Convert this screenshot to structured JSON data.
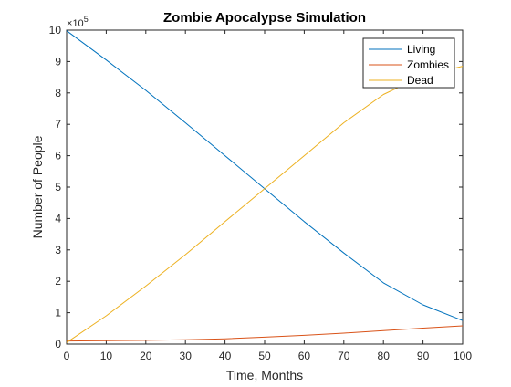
{
  "chart_data": {
    "type": "line",
    "title": "Zombie Apocalypse Simulation",
    "xlabel": "Time, Months",
    "ylabel": "Number of People",
    "y_exponent": {
      "base": "10",
      "power": "5"
    },
    "xlim": [
      0,
      100
    ],
    "ylim": [
      0,
      10
    ],
    "x_ticks": [
      0,
      10,
      20,
      30,
      40,
      50,
      60,
      70,
      80,
      90,
      100
    ],
    "y_ticks": [
      0,
      1,
      2,
      3,
      4,
      5,
      6,
      7,
      8,
      9,
      10
    ],
    "grid": false,
    "legend_position": "top-right",
    "x": [
      0,
      10,
      20,
      30,
      40,
      50,
      60,
      70,
      80,
      90,
      100
    ],
    "series": [
      {
        "name": "Living",
        "color": "#0072BD",
        "values": [
          9.98,
          9.05,
          8.08,
          7.05,
          6.0,
          4.95,
          3.9,
          2.9,
          1.95,
          1.25,
          0.75
        ]
      },
      {
        "name": "Zombies",
        "color": "#D95319",
        "values": [
          0.1,
          0.11,
          0.12,
          0.14,
          0.17,
          0.22,
          0.28,
          0.35,
          0.43,
          0.51,
          0.58
        ]
      },
      {
        "name": "Dead",
        "color": "#EDB120",
        "values": [
          0.05,
          0.9,
          1.85,
          2.85,
          3.9,
          4.95,
          6.0,
          7.05,
          7.95,
          8.55,
          8.85
        ]
      }
    ]
  }
}
